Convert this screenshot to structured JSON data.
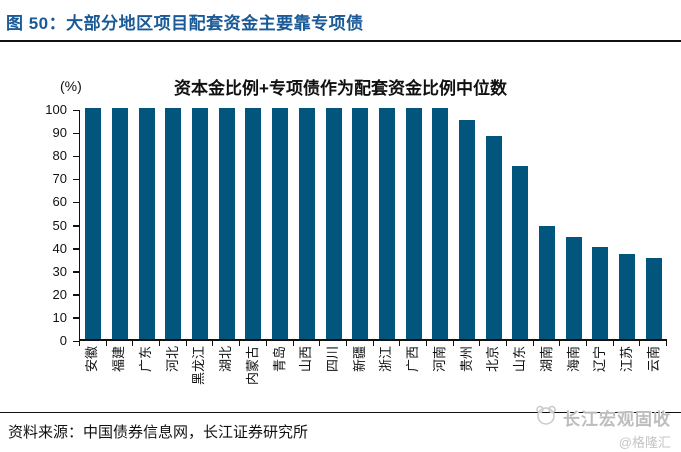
{
  "figure": {
    "title": "图 50：大部分地区项目配套资金主要靠专项债",
    "source": "资料来源：中国债券信息网，长江证券研究所",
    "watermark": {
      "name": "长江宏观固收",
      "handle": "@格隆汇"
    }
  },
  "chart_data": {
    "type": "bar",
    "title": "资本金比例+专项债作为配套资金比例中位数",
    "unit_label": "(%)",
    "categories": [
      "安徽",
      "福建",
      "广东",
      "河北",
      "黑龙江",
      "湖北",
      "内蒙古",
      "青岛",
      "山西",
      "四川",
      "新疆",
      "浙江",
      "广西",
      "河南",
      "贵州",
      "北京",
      "山东",
      "湖南",
      "海南",
      "辽宁",
      "江苏",
      "云南"
    ],
    "values": [
      100,
      100,
      100,
      100,
      100,
      100,
      100,
      100,
      100,
      100,
      100,
      100,
      100,
      100,
      95,
      88,
      75,
      49,
      44,
      40,
      37,
      35
    ],
    "xlabel": "",
    "ylabel": "(%)",
    "ylim": [
      0,
      100
    ],
    "yticks": [
      0,
      10,
      20,
      30,
      40,
      50,
      60,
      70,
      80,
      90,
      100
    ],
    "grid": false,
    "legend": false,
    "bar_color": "#02567E"
  },
  "colors": {
    "title_blue": "#1A5A96",
    "bar": "#02567E",
    "axis_black": "#111111",
    "watermark_gray": "#BDBDBD"
  }
}
